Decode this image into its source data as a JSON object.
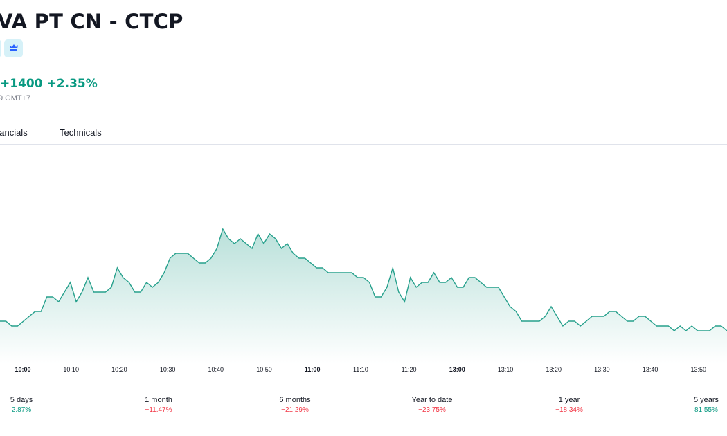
{
  "header": {
    "title": "VA PT CN - CTCP",
    "change_abs": "+1400",
    "change_pct": "+2.35%",
    "timezone": "9 GMT+7",
    "badge_icon": "crown-icon"
  },
  "tabs": [
    {
      "label": "nancials"
    },
    {
      "label": "Technicals"
    }
  ],
  "colors": {
    "positive": "#089981",
    "negative": "#f23645",
    "line": "#26a08c",
    "badge_bg": "#d6f1f8"
  },
  "chart_data": {
    "type": "area",
    "x_tick_labels": [
      "10:00",
      "10:10",
      "10:20",
      "10:30",
      "10:40",
      "10:50",
      "11:00",
      "11:10",
      "11:20",
      "13:00",
      "13:10",
      "13:20",
      "13:30",
      "13:40",
      "13:50"
    ],
    "bold_ticks": [
      "10:00",
      "11:00",
      "13:00"
    ],
    "values": [
      18,
      18,
      17,
      17,
      18,
      19,
      20,
      20,
      23,
      23,
      22,
      24,
      26,
      22,
      24,
      27,
      24,
      24,
      24,
      25,
      29,
      27,
      26,
      24,
      24,
      26,
      25,
      26,
      28,
      31,
      32,
      32,
      32,
      31,
      30,
      30,
      31,
      33,
      37,
      35,
      34,
      35,
      34,
      33,
      36,
      34,
      36,
      35,
      33,
      34,
      32,
      31,
      31,
      30,
      29,
      29,
      28,
      28,
      28,
      28,
      28,
      27,
      27,
      26,
      23,
      23,
      25,
      29,
      24,
      22,
      27,
      25,
      26,
      26,
      28,
      26,
      26,
      27,
      25,
      25,
      27,
      27,
      26,
      25,
      25,
      25,
      23,
      21,
      20,
      18,
      18,
      18,
      18,
      19,
      21,
      19,
      17,
      18,
      18,
      17,
      18,
      19,
      19,
      19,
      20,
      20,
      19,
      18,
      18,
      19,
      19,
      18,
      17,
      17,
      17,
      16,
      17,
      16,
      17,
      16,
      16,
      16,
      17,
      17,
      16
    ],
    "grid": false
  },
  "performance": [
    {
      "label": "5 days",
      "value": "2.87%",
      "direction": "up"
    },
    {
      "label": "1 month",
      "value": "−11.47%",
      "direction": "down"
    },
    {
      "label": "6 months",
      "value": "−21.29%",
      "direction": "down"
    },
    {
      "label": "Year to date",
      "value": "−23.75%",
      "direction": "down"
    },
    {
      "label": "1 year",
      "value": "−18.34%",
      "direction": "down"
    },
    {
      "label": "5 years",
      "value": "81.55%",
      "direction": "up"
    }
  ]
}
